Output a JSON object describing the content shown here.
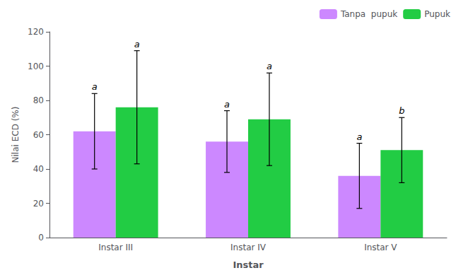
{
  "chart_data": {
    "type": "bar",
    "categories": [
      "Instar III",
      "Instar IV",
      "Instar V"
    ],
    "series": [
      {
        "name": "Tanpa  pupuk",
        "color": "#CC88FF",
        "values": [
          62,
          56,
          36
        ],
        "errors": [
          22,
          18,
          19
        ],
        "annotations": [
          "a",
          "a",
          "a"
        ]
      },
      {
        "name": "Pupuk",
        "color": "#22CC44",
        "values": [
          76,
          69,
          51
        ],
        "errors": [
          33,
          27,
          19
        ],
        "annotations": [
          "a",
          "a",
          "b"
        ]
      }
    ],
    "xlabel": "Instar",
    "ylabel": "Nilai ECD (%)",
    "ylim": [
      0,
      120
    ],
    "yticks": [
      0,
      20,
      40,
      60,
      80,
      100,
      120
    ],
    "grid": false,
    "legend": "upper right"
  }
}
